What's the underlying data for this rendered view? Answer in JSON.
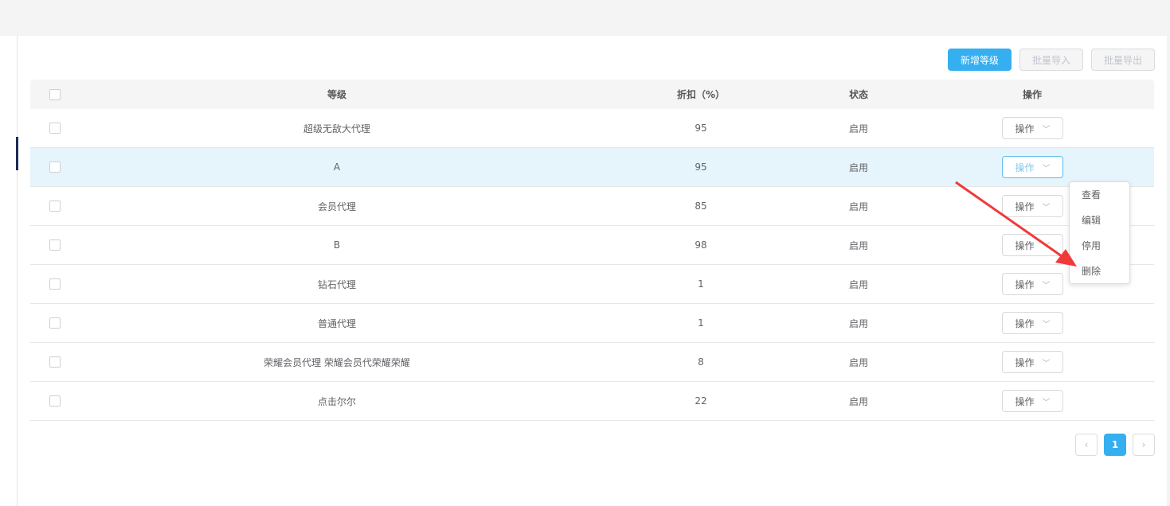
{
  "toolbar": {
    "add": "新增等级",
    "import": "批量导入",
    "export": "批量导出"
  },
  "columns": {
    "level": "等级",
    "discount": "折扣（%）",
    "status": "状态",
    "action": "操作"
  },
  "rows": [
    {
      "level": "超级无敌大代理",
      "discount": "95",
      "status": "启用",
      "action": "操作"
    },
    {
      "level": "A",
      "discount": "95",
      "status": "启用",
      "action": "操作"
    },
    {
      "level": "会员代理",
      "discount": "85",
      "status": "启用",
      "action": "操作"
    },
    {
      "level": "B",
      "discount": "98",
      "status": "启用",
      "action": "操作"
    },
    {
      "level": "钻石代理",
      "discount": "1",
      "status": "启用",
      "action": "操作"
    },
    {
      "level": "普通代理",
      "discount": "1",
      "status": "启用",
      "action": "操作"
    },
    {
      "level": "荣耀会员代理 荣耀会员代荣耀荣耀",
      "discount": "8",
      "status": "启用",
      "action": "操作"
    },
    {
      "level": "点击尔尔",
      "discount": "22",
      "status": "启用",
      "action": "操作"
    }
  ],
  "menu": [
    "查看",
    "编辑",
    "停用",
    "删除"
  ],
  "pagination": {
    "current": "1",
    "prev": "‹",
    "next": "›"
  },
  "colors": {
    "primary": "#35aff0",
    "arrow": "#f03a3a",
    "highlight": "#e6f4fc"
  }
}
